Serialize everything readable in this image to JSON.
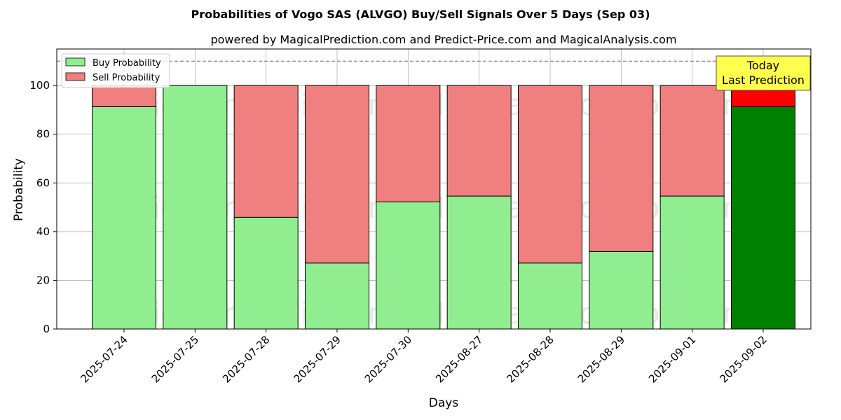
{
  "chart_data": {
    "type": "bar",
    "stacked": true,
    "title": "Probabilities of Vogo SAS (ALVGO) Buy/Sell Signals Over 5 Days (Sep 03)",
    "subtitle": "powered by MagicalPrediction.com and Predict-Price.com and MagicalAnalysis.com",
    "xlabel": "Days",
    "ylabel": "Probability",
    "ylim": [
      0,
      115
    ],
    "yticks": [
      0,
      20,
      40,
      60,
      80,
      100
    ],
    "grid": true,
    "reference_line": 110,
    "categories": [
      "2025-07-24",
      "2025-07-25",
      "2025-07-28",
      "2025-07-29",
      "2025-07-30",
      "2025-08-27",
      "2025-08-28",
      "2025-08-29",
      "2025-09-01",
      "2025-09-02"
    ],
    "series": [
      {
        "name": "Buy Probability",
        "color": "#90ee90",
        "highlight_color": "#008000",
        "values": [
          91.3,
          100,
          45.9,
          27.1,
          52.2,
          54.6,
          27.1,
          31.8,
          54.6,
          91.3
        ]
      },
      {
        "name": "Sell Probability",
        "color": "#f08080",
        "highlight_color": "#ff0000",
        "values": [
          8.7,
          0,
          54.1,
          72.9,
          47.8,
          45.4,
          72.9,
          68.2,
          45.4,
          8.7
        ]
      }
    ],
    "highlight_index": 9,
    "legend_position": "top-left",
    "annotation": {
      "line1": "Today",
      "line2": "Last Prediction",
      "box_color": "#ffff4d"
    },
    "watermarks": [
      "MagicalAnalysis.com",
      "MagicalPrediction.com"
    ]
  }
}
